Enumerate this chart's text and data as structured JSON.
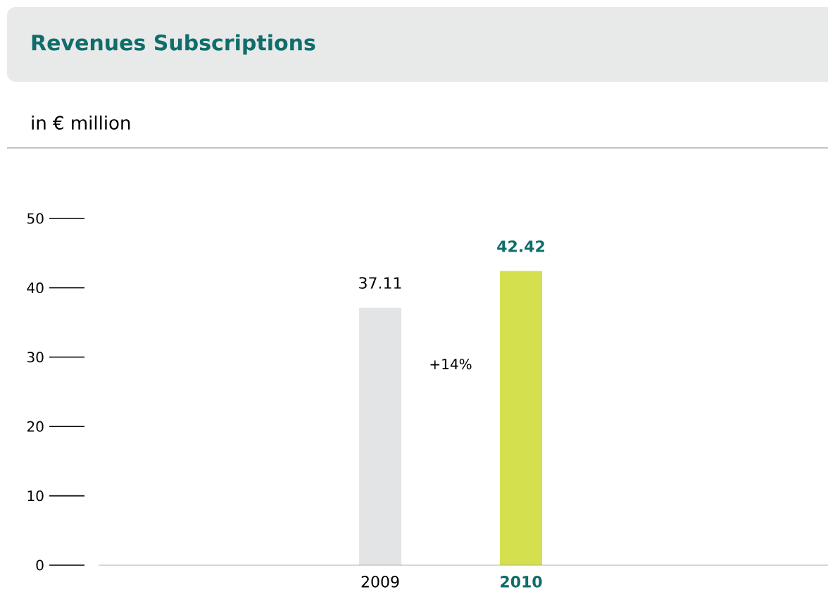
{
  "chart_data": {
    "type": "bar",
    "title": "Revenues Subscriptions",
    "subtitle": "in € million",
    "categories": [
      "2009",
      "2010"
    ],
    "values": [
      37.11,
      42.42
    ],
    "colors": [
      "#e3e4e5",
      "#d5e04e"
    ],
    "value_labels": [
      "37.11",
      "42.42"
    ],
    "annotations": [
      "+14%"
    ],
    "ylim": [
      0,
      50
    ],
    "yticks": [
      {
        "value": 0,
        "label": "0"
      },
      {
        "value": 10,
        "label": "10"
      },
      {
        "value": 20,
        "label": "20"
      },
      {
        "value": 30,
        "label": "30"
      },
      {
        "value": 40,
        "label": "40"
      },
      {
        "value": 50,
        "label": "50"
      }
    ],
    "grid": false
  }
}
